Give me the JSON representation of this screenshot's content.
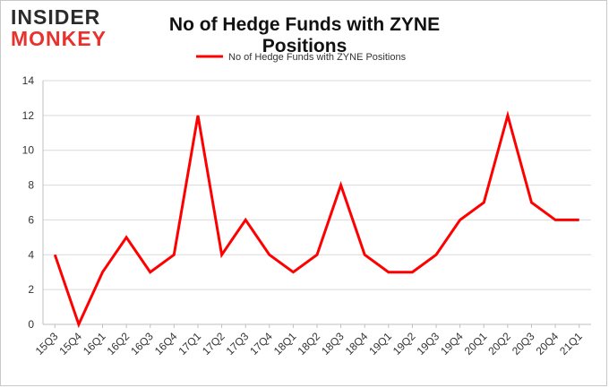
{
  "logo": {
    "line1": "INSIDER",
    "line2": "MONKEY"
  },
  "colors": {
    "series": "#ff0000",
    "grid": "#d9d9d9",
    "text": "#333333",
    "logo_dark": "#2b2b2b",
    "logo_red": "#e8322d"
  },
  "chart_data": {
    "type": "line",
    "title": "No of Hedge Funds with ZYNE Positions",
    "xlabel": "",
    "ylabel": "",
    "categories": [
      "15Q3",
      "15Q4",
      "16Q1",
      "16Q2",
      "16Q3",
      "16Q4",
      "17Q1",
      "17Q2",
      "17Q3",
      "17Q4",
      "18Q1",
      "18Q2",
      "18Q3",
      "18Q4",
      "19Q1",
      "19Q2",
      "19Q3",
      "19Q4",
      "20Q1",
      "20Q2",
      "20Q3",
      "20Q4",
      "21Q1"
    ],
    "series": [
      {
        "name": "No of Hedge Funds with ZYNE Positions",
        "values": [
          4,
          0,
          3,
          5,
          3,
          4,
          12,
          4,
          6,
          4,
          3,
          4,
          8,
          4,
          3,
          3,
          4,
          6,
          7,
          12,
          7,
          6,
          6
        ]
      }
    ],
    "ylim": [
      0,
      14
    ],
    "yticks": [
      0,
      2,
      4,
      6,
      8,
      10,
      12,
      14
    ],
    "grid": true,
    "legend": "top-center"
  }
}
